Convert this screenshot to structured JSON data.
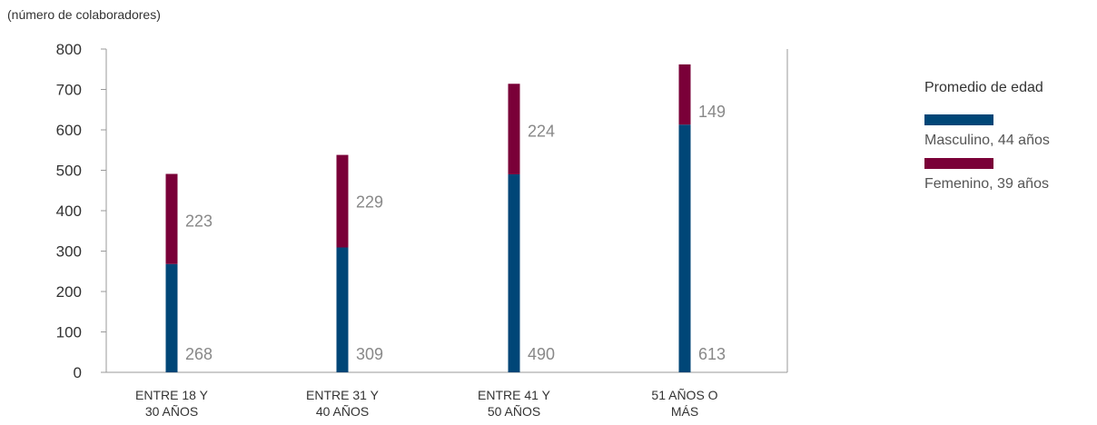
{
  "unit_label": "(número de colaboradores)",
  "legend": {
    "title": "Promedio de edad",
    "items": [
      {
        "label": "Masculino, 44 años",
        "color": "#004677"
      },
      {
        "label": "Femenino, 39 años",
        "color": "#7A0038"
      }
    ]
  },
  "chart_data": {
    "type": "bar",
    "stacked": true,
    "categories": [
      [
        "ENTRE 18 Y",
        "30 AÑOS"
      ],
      [
        "ENTRE 31 Y",
        "40 AÑOS"
      ],
      [
        "ENTRE 41 Y",
        "50 AÑOS"
      ],
      [
        "51 AÑOS O",
        "MÁS"
      ]
    ],
    "series": [
      {
        "name": "Masculino, 44 años",
        "color": "#004677",
        "values": [
          268,
          309,
          490,
          613
        ]
      },
      {
        "name": "Femenino, 39 años",
        "color": "#7A0038",
        "values": [
          223,
          229,
          224,
          149
        ]
      }
    ],
    "ylim": [
      0,
      800
    ],
    "yticks": [
      0,
      100,
      200,
      300,
      400,
      500,
      600,
      700,
      800
    ],
    "grid": false,
    "legend_position": "right"
  }
}
